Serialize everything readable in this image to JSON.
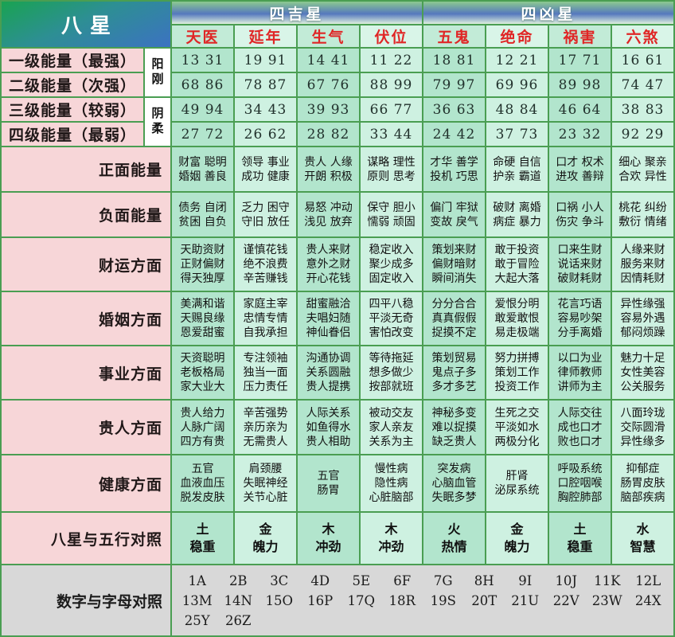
{
  "header": {
    "title": "八星",
    "good_group": "四吉星",
    "bad_group": "四凶星",
    "stars": [
      "天医",
      "延年",
      "生气",
      "伏位",
      "五鬼",
      "绝命",
      "祸害",
      "六煞"
    ]
  },
  "yin_yang": {
    "yang": "阳刚",
    "yin": "阴柔"
  },
  "energy_rows": [
    {
      "label": "一级能量（最强）",
      "values": [
        "13 31",
        "19 91",
        "14 41",
        "11 22",
        "18 81",
        "12 21",
        "17 71",
        "16 61"
      ]
    },
    {
      "label": "二级能量（次强）",
      "values": [
        "68 86",
        "78 87",
        "67 76",
        "88 99",
        "79 97",
        "69 96",
        "89 98",
        "74 47"
      ]
    },
    {
      "label": "三级能量（较弱）",
      "values": [
        "49 94",
        "34 43",
        "39 93",
        "66 77",
        "36 63",
        "48 84",
        "46 64",
        "38 83"
      ]
    },
    {
      "label": "四级能量（最弱）",
      "values": [
        "27 72",
        "26 62",
        "28 82",
        "33 44",
        "24 42",
        "37 73",
        "23 32",
        "92 29"
      ]
    }
  ],
  "aspect_rows": [
    {
      "label": "正面能量",
      "cells": [
        [
          "财富 聪明",
          "婚姻 善良"
        ],
        [
          "领导 事业",
          "成功 健康"
        ],
        [
          "贵人 人缘",
          "开朗 积极"
        ],
        [
          "谋略 理性",
          "原则 思考"
        ],
        [
          "才华 善学",
          "投机 巧思"
        ],
        [
          "命硬 自信",
          "护亲 霸道"
        ],
        [
          "口才 权术",
          "进攻 善辩"
        ],
        [
          "细心 聚亲",
          "合欢 异性"
        ]
      ]
    },
    {
      "label": "负面能量",
      "cells": [
        [
          "债务 自闭",
          "贫困 自负"
        ],
        [
          "乏力 困守",
          "守旧 放任"
        ],
        [
          "易怒 冲动",
          "浅见 放弃"
        ],
        [
          "保守 胆小",
          "懦弱 顽固"
        ],
        [
          "偏门 牢狱",
          "变故 戾气"
        ],
        [
          "破财 离婚",
          "病症 暴力"
        ],
        [
          "口祸 小人",
          "伤灾 争斗"
        ],
        [
          "桃花 纠纷",
          "敷衍 情绪"
        ]
      ]
    },
    {
      "label": "财运方面",
      "cells": [
        [
          "天助资财",
          "正财偏财",
          "得天独厚"
        ],
        [
          "谨慎花钱",
          "绝不浪费",
          "辛苦赚钱"
        ],
        [
          "贵人来财",
          "意外之财",
          "开心花钱"
        ],
        [
          "稳定收入",
          "聚少成多",
          "固定收入"
        ],
        [
          "策划来财",
          "偏财暗财",
          "瞬间消失"
        ],
        [
          "敢于投资",
          "敢于冒险",
          "大起大落"
        ],
        [
          "口来生财",
          "说话来财",
          "破财耗财"
        ],
        [
          "人缘来财",
          "服务来财",
          "因情耗财"
        ]
      ]
    },
    {
      "label": "婚姻方面",
      "cells": [
        [
          "美满和谐",
          "天赐良缘",
          "恩爱甜蜜"
        ],
        [
          "家庭主宰",
          "忠情专情",
          "自我承担"
        ],
        [
          "甜蜜融洽",
          "夫唱妇随",
          "神仙眷侣"
        ],
        [
          "四平八稳",
          "平淡无奇",
          "害怕改变"
        ],
        [
          "分分合合",
          "真真假假",
          "捉摸不定"
        ],
        [
          "爱恨分明",
          "敢爱敢恨",
          "易走极端"
        ],
        [
          "花言巧语",
          "容易吵架",
          "分手离婚"
        ],
        [
          "异性缘强",
          "容易外遇",
          "郁闷烦躁"
        ]
      ]
    },
    {
      "label": "事业方面",
      "cells": [
        [
          "天资聪明",
          "老板格局",
          "家大业大"
        ],
        [
          "专注领袖",
          "独当一面",
          "压力责任"
        ],
        [
          "沟通协调",
          "关系圆融",
          "贵人提携"
        ],
        [
          "等待拖延",
          "想多做少",
          "按部就班"
        ],
        [
          "策划贸易",
          "鬼点子多",
          "多才多艺"
        ],
        [
          "努力拼搏",
          "策划工作",
          "投资工作"
        ],
        [
          "以口为业",
          "律师教师",
          "讲师为主"
        ],
        [
          "魅力十足",
          "女性美容",
          "公关服务"
        ]
      ]
    },
    {
      "label": "贵人方面",
      "cells": [
        [
          "贵人给力",
          "人脉广阔",
          "四方有贵"
        ],
        [
          "辛苦强势",
          "亲历亲为",
          "无需贵人"
        ],
        [
          "人际关系",
          "如鱼得水",
          "贵人相助"
        ],
        [
          "被动交友",
          "家人亲友",
          "关系为主"
        ],
        [
          "神秘多变",
          "难以捉摸",
          "缺乏贵人"
        ],
        [
          "生死之交",
          "平淡如水",
          "两极分化"
        ],
        [
          "人际交往",
          "成也口才",
          "败也口才"
        ],
        [
          "八面玲珑",
          "交际圆滑",
          "异性缘多"
        ]
      ]
    },
    {
      "label": "健康方面",
      "cells": [
        [
          "五官",
          "血液血压",
          "脱发皮肤"
        ],
        [
          "肩颈腰",
          "失眠神经",
          "关节心脏"
        ],
        [
          "五官",
          "肠胃"
        ],
        [
          "慢性病",
          "隐性病",
          "心脏脑部"
        ],
        [
          "突发病",
          "心脑血管",
          "失眠多梦"
        ],
        [
          "肝肾",
          "泌尿系统"
        ],
        [
          "呼吸系统",
          "口腔咽喉",
          "胸腔肺部"
        ],
        [
          "抑郁症",
          "肠胃皮肤",
          "脑部疾病"
        ]
      ]
    },
    {
      "label": "八星与五行对照",
      "cells": [
        [
          "土",
          "稳重"
        ],
        [
          "金",
          "魄力"
        ],
        [
          "木",
          "冲劲"
        ],
        [
          "木",
          "冲劲"
        ],
        [
          "火",
          "热情"
        ],
        [
          "金",
          "魄力"
        ],
        [
          "土",
          "稳重"
        ],
        [
          "水",
          "智慧"
        ]
      ]
    }
  ],
  "letters_row": {
    "label": "数字与字母对照",
    "line1": [
      "1A",
      "2B",
      "3C",
      "4D",
      "5E",
      "6F",
      "7G",
      "8H",
      "9I",
      "10J",
      "11K",
      "12L"
    ],
    "line2": [
      "13M",
      "14N",
      "15O",
      "16P",
      "17Q",
      "18R",
      "19S",
      "20T",
      "21U",
      "22V",
      "23W",
      "24X"
    ],
    "line3": [
      "25Y",
      "26Z"
    ]
  },
  "colors": {
    "star_name_text": "#e02626",
    "group_header_text": "#ffffff",
    "mint_dark": "#b2e5cd",
    "mint_light": "#cef1e1",
    "pink_label": "#f7d6d8",
    "letters_bg": "#d8d8d8",
    "grid_green": "#4a9e52",
    "band_green": "#8cca90",
    "band_blue": "#5578be",
    "baxing_green": "#19a351",
    "baxing_blue": "#3c72c2"
  }
}
